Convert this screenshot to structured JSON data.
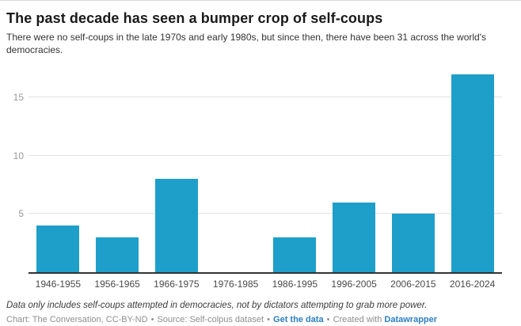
{
  "header": {
    "title": "The past decade has seen a bumper crop of self-coups",
    "subtitle": "There were no self-coups in the late 1970s and early 1980s, but since then, there have been 31 across the world's democracies."
  },
  "chart_data": {
    "type": "bar",
    "title": "The past decade has seen a bumper crop of self-coups",
    "subtitle": "There were no self-coups in the late 1970s and early 1980s, but since then, there have been 31 across the world's democracies.",
    "categories": [
      "1946-1955",
      "1956-1965",
      "1966-1975",
      "1976-1985",
      "1986-1995",
      "1996-2005",
      "2006-2015",
      "2016-2024"
    ],
    "values": [
      4,
      3,
      8,
      0,
      3,
      6,
      5,
      17
    ],
    "xlabel": "",
    "ylabel": "",
    "ylim": [
      0,
      17
    ],
    "yticks": [
      5,
      10,
      15
    ],
    "grid": "horizontal",
    "legend": "none",
    "bar_color": "#1d9fc9"
  },
  "colors": {
    "bar": "#1d9fc9",
    "link": "#2b7fc4",
    "axis_line": "#333333",
    "gridline": "#e2e2e2"
  },
  "footer": {
    "note": "Data only includes self-coups attempted in democracies, not by dictators attempting to grab more power.",
    "byline": {
      "chart_credit": "Chart: The Conversation, CC-BY-ND",
      "separator": "•",
      "source": "Source: Self-colpus dataset",
      "get_data_link": "Get the data",
      "created_with": "Created with",
      "datawrapper_link": "Datawrapper"
    }
  }
}
